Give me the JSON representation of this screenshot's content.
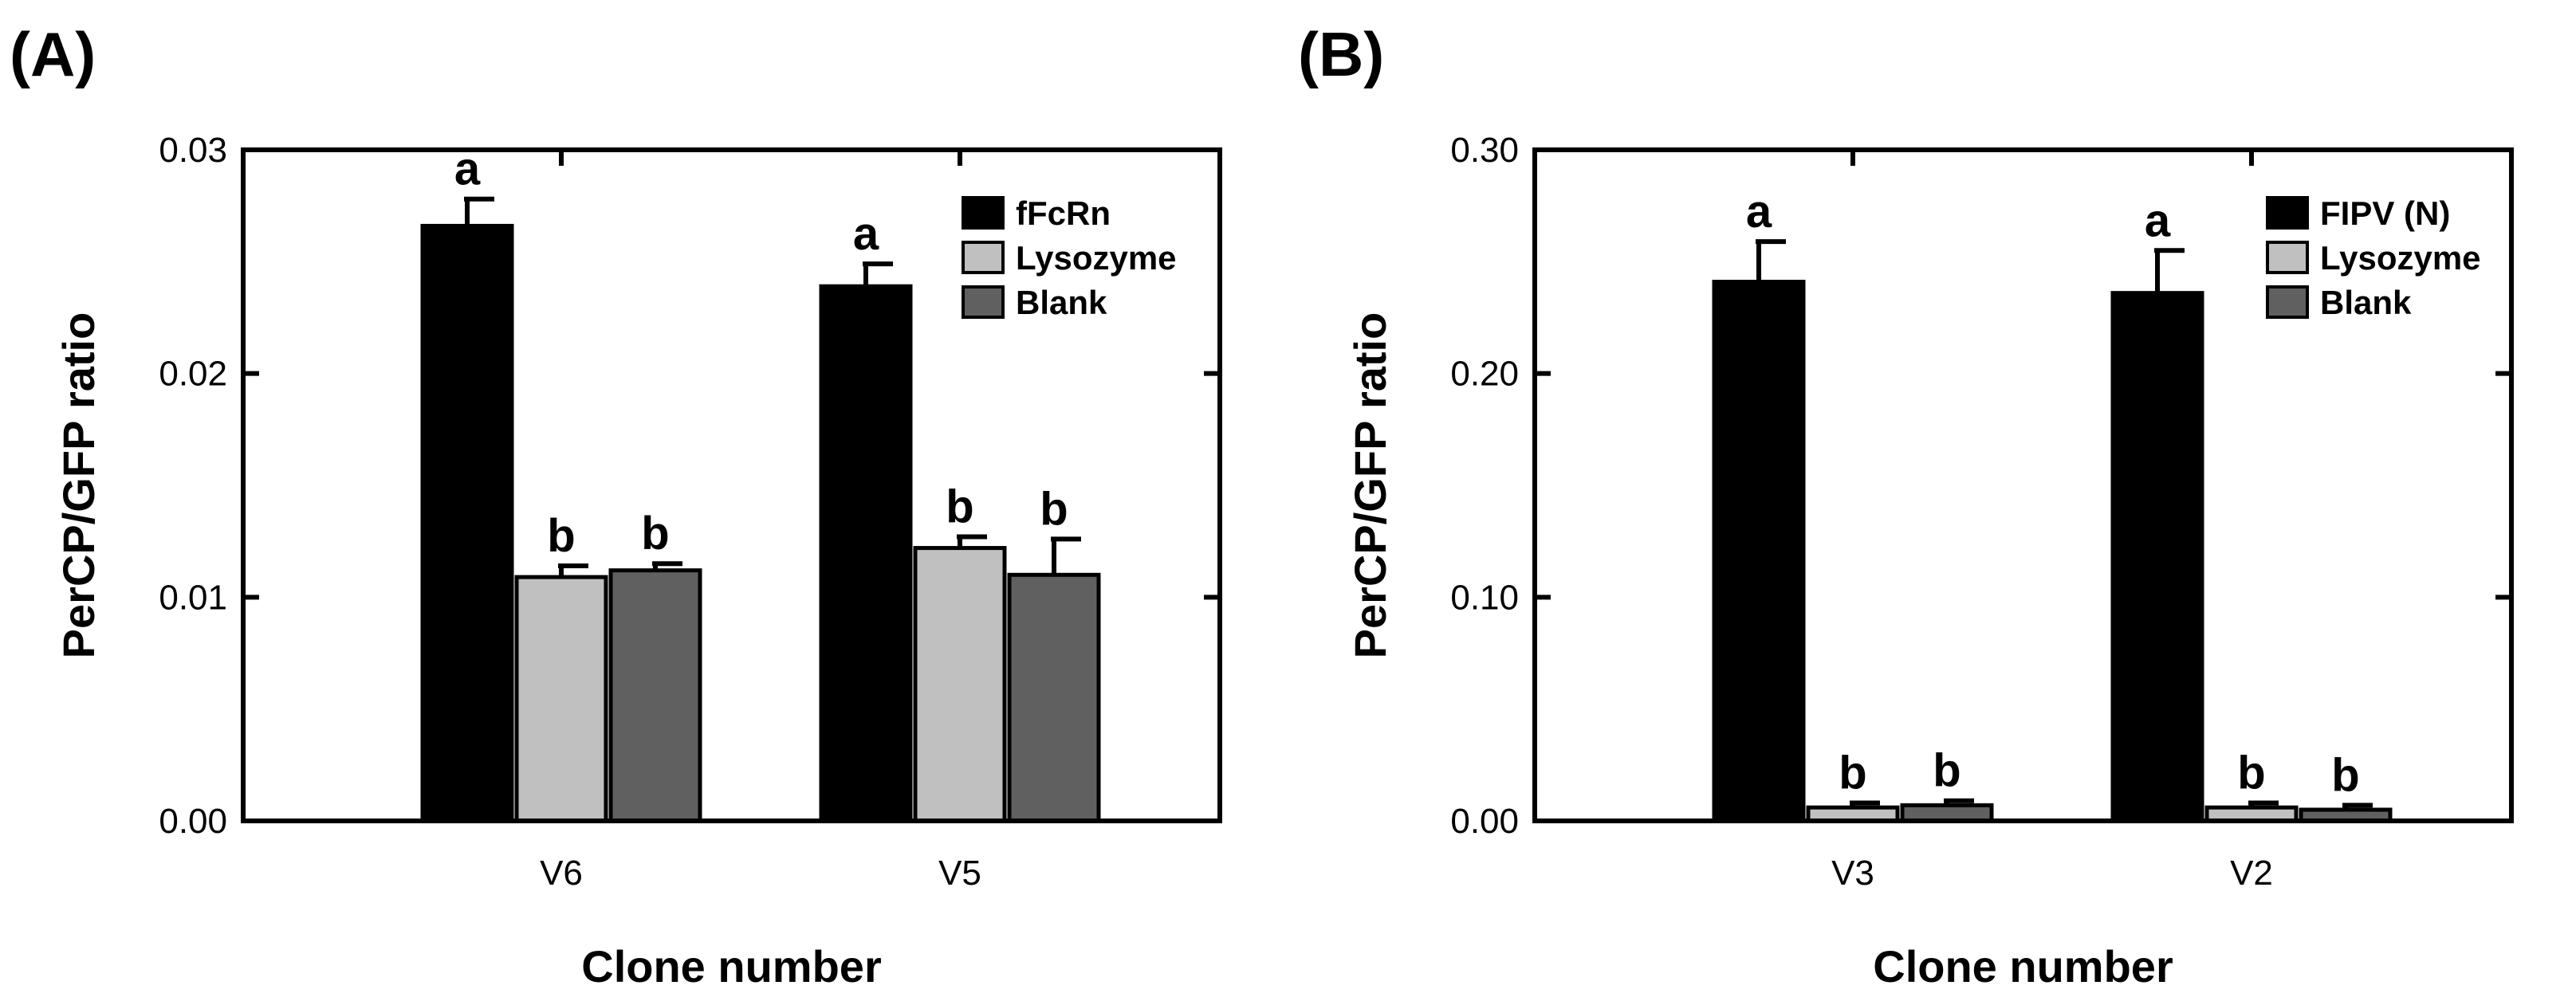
{
  "chart_data": [
    {
      "panel": "(A)",
      "type": "bar",
      "xlabel": "Clone number",
      "ylabel": "PerCP/GFP ratio",
      "ylim": [
        0,
        0.03
      ],
      "yticks": [
        0.0,
        0.01,
        0.02,
        0.03
      ],
      "ytick_labels": [
        "0.00",
        "0.01",
        "0.02",
        "0.03"
      ],
      "categories": [
        "V6",
        "V5"
      ],
      "legend_position": "top-right",
      "series": [
        {
          "name": "fFcRn",
          "color": "#000000",
          "values": [
            0.0266,
            0.0239
          ],
          "errors": [
            0.0012,
            0.001
          ],
          "labels": [
            "a",
            "a"
          ]
        },
        {
          "name": "Lysozyme",
          "color": "#c0c0c0",
          "values": [
            0.0109,
            0.0122
          ],
          "errors": [
            0.0005,
            0.0005
          ],
          "labels": [
            "b",
            "b"
          ]
        },
        {
          "name": "Blank",
          "color": "#606060",
          "values": [
            0.0112,
            0.011
          ],
          "errors": [
            0.0003,
            0.0016
          ],
          "labels": [
            "b",
            "b"
          ]
        }
      ]
    },
    {
      "panel": "(B)",
      "type": "bar",
      "xlabel": "Clone number",
      "ylabel": "PerCP/GFP ratio",
      "ylim": [
        0,
        0.3
      ],
      "yticks": [
        0.0,
        0.1,
        0.2,
        0.3
      ],
      "ytick_labels": [
        "0.00",
        "0.10",
        "0.20",
        "0.30"
      ],
      "categories": [
        "V3",
        "V2"
      ],
      "legend_position": "top-right",
      "series": [
        {
          "name": "FIPV (N)",
          "color": "#000000",
          "values": [
            0.241,
            0.236
          ],
          "errors": [
            0.018,
            0.019
          ],
          "labels": [
            "a",
            "a"
          ]
        },
        {
          "name": "Lysozyme",
          "color": "#c0c0c0",
          "values": [
            0.006,
            0.006
          ],
          "errors": [
            0.002,
            0.002
          ],
          "labels": [
            "b",
            "b"
          ]
        },
        {
          "name": "Blank",
          "color": "#606060",
          "values": [
            0.007,
            0.005
          ],
          "errors": [
            0.002,
            0.002
          ],
          "labels": [
            "b",
            "b"
          ]
        }
      ]
    }
  ]
}
